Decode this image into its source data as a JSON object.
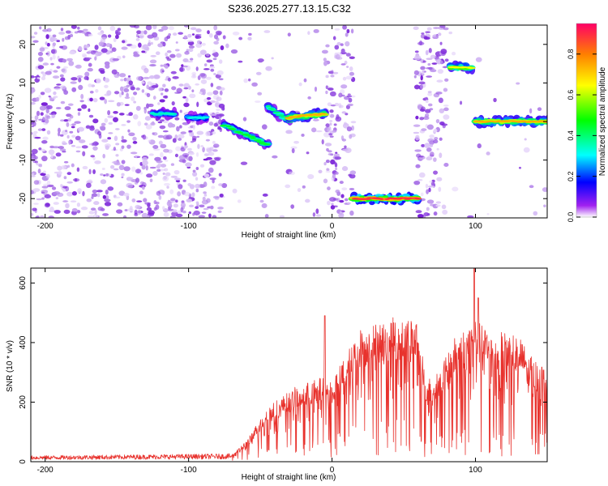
{
  "title": "S236.2025.277.13.15.C32",
  "colors": {
    "signal": "#e8322d",
    "axis": "#000000",
    "background": "#ffffff"
  },
  "chart_data": [
    {
      "type": "heatmap",
      "name": "spectrogram",
      "xlabel": "Height of straight line (km)",
      "ylabel": "Frequency (Hz)",
      "xlim": [
        -210,
        150
      ],
      "ylim": [
        -25,
        25
      ],
      "xticks": [
        -200,
        -100,
        0,
        100
      ],
      "xtick_labels": [
        "-200",
        "-100",
        "0",
        "100"
      ],
      "yticks": [
        -20,
        -10,
        0,
        10,
        20
      ],
      "ytick_labels": [
        "-20",
        "-10",
        "0",
        "10",
        "20"
      ],
      "colorbar": {
        "label": "Normalized spectral amplitude",
        "range": [
          0,
          0.95
        ],
        "ticks": [
          0.0,
          0.2,
          0.4,
          0.6,
          0.8
        ],
        "tick_labels": [
          "0.0",
          "0.2",
          "0.4",
          "0.6",
          "0.8"
        ]
      },
      "noise_regions": [
        {
          "x": [
            -210,
            -75
          ],
          "density": 1.0
        },
        {
          "x": [
            -75,
            -5
          ],
          "density": 0.12
        },
        {
          "x": [
            -5,
            15
          ],
          "density": 1.0
        },
        {
          "x": [
            58,
            80
          ],
          "density": 1.0
        },
        {
          "x": [
            80,
            150
          ],
          "density": 0.04
        }
      ],
      "signal_tracks": [
        {
          "x": [
            -125,
            -110
          ],
          "freq": [
            2,
            2
          ],
          "amp": 0.35
        },
        {
          "x": [
            -100,
            -88
          ],
          "freq": [
            1,
            1
          ],
          "amp": 0.32
        },
        {
          "x": [
            -75,
            -45
          ],
          "freq": [
            -1,
            -6
          ],
          "amp": 0.45
        },
        {
          "x": [
            -45,
            -30
          ],
          "freq": [
            4,
            0
          ],
          "amp": 0.4
        },
        {
          "x": [
            -30,
            -5
          ],
          "freq": [
            1,
            2
          ],
          "amp": 0.75
        },
        {
          "x": [
            15,
            60
          ],
          "freq": [
            -20,
            -20
          ],
          "amp": 0.9
        },
        {
          "x": [
            83,
            97
          ],
          "freq": [
            14,
            14
          ],
          "amp": 0.65
        },
        {
          "x": [
            100,
            150
          ],
          "freq": [
            0,
            0
          ],
          "amp": 0.75
        }
      ]
    },
    {
      "type": "line",
      "name": "snr",
      "xlabel": "Height of straight line (km)",
      "ylabel": "SNR (10 * v/v)",
      "xlim": [
        -210,
        150
      ],
      "ylim": [
        0,
        650
      ],
      "xticks": [
        -200,
        -100,
        0,
        100
      ],
      "xtick_labels": [
        "-200",
        "-100",
        "0",
        "100"
      ],
      "yticks": [
        0,
        200,
        400,
        600
      ],
      "ytick_labels": [
        "0",
        "200",
        "400",
        "600"
      ],
      "envelope": {
        "x": [
          -210,
          -70,
          -60,
          -45,
          -25,
          -5,
          0,
          10,
          20,
          30,
          40,
          50,
          60,
          65,
          75,
          80,
          85,
          90,
          95,
          100,
          110,
          120,
          130,
          140,
          150
        ],
        "y": [
          15,
          20,
          60,
          160,
          220,
          250,
          240,
          320,
          390,
          410,
          420,
          425,
          420,
          240,
          270,
          310,
          360,
          380,
          400,
          420,
          380,
          380,
          370,
          300,
          280
        ]
      },
      "spikes": [
        {
          "x": -5,
          "y": 490
        },
        {
          "x": 99,
          "y": 650
        },
        {
          "x": 102,
          "y": 550
        }
      ]
    }
  ]
}
